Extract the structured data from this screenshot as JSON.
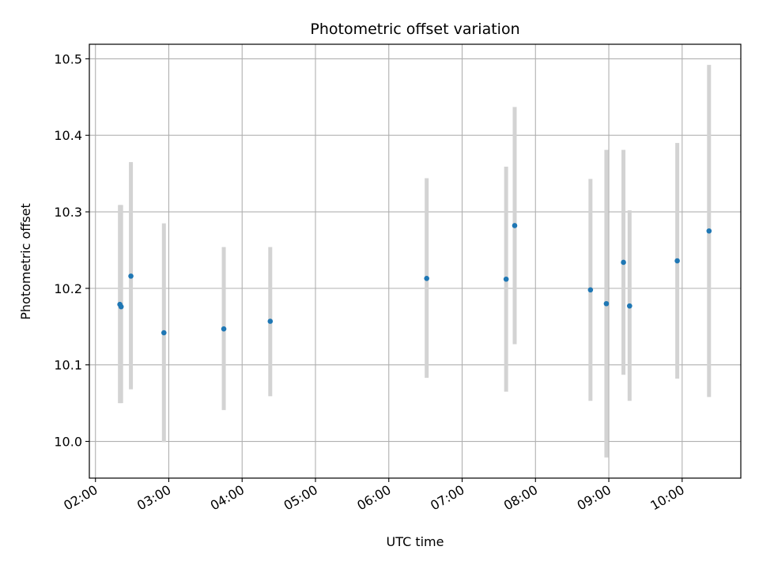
{
  "chart_data": {
    "type": "scatter",
    "title": "Photometric offset variation",
    "xlabel": "UTC time",
    "ylabel": "Photometric offset",
    "x_ticks": [
      "02:00",
      "03:00",
      "04:00",
      "05:00",
      "06:00",
      "07:00",
      "08:00",
      "09:00",
      "10:00"
    ],
    "y_ticks": [
      10.0,
      10.1,
      10.2,
      10.3,
      10.4,
      10.5
    ],
    "y_tick_labels": [
      "10.0",
      "10.1",
      "10.2",
      "10.3",
      "10.4",
      "10.5"
    ],
    "xlim": [
      "01:55",
      "10:48"
    ],
    "ylim": [
      9.952,
      10.519
    ],
    "grid": true,
    "colors": {
      "point": "#1f77b4",
      "errorbar": "#d3d3d3",
      "grid": "#b0b0b0"
    },
    "points": [
      {
        "x": "02:20",
        "y": 10.179,
        "err_low": 10.05,
        "err_high": 10.309
      },
      {
        "x": "02:21",
        "y": 10.176,
        "err_low": 10.05,
        "err_high": 10.309
      },
      {
        "x": "02:29",
        "y": 10.216,
        "err_low": 10.068,
        "err_high": 10.365
      },
      {
        "x": "02:56",
        "y": 10.142,
        "err_low": 9.999,
        "err_high": 10.285
      },
      {
        "x": "03:45",
        "y": 10.147,
        "err_low": 10.041,
        "err_high": 10.254
      },
      {
        "x": "04:23",
        "y": 10.157,
        "err_low": 10.059,
        "err_high": 10.254
      },
      {
        "x": "06:31",
        "y": 10.213,
        "err_low": 10.083,
        "err_high": 10.344
      },
      {
        "x": "07:36",
        "y": 10.212,
        "err_low": 10.065,
        "err_high": 10.359
      },
      {
        "x": "07:43",
        "y": 10.282,
        "err_low": 10.127,
        "err_high": 10.437
      },
      {
        "x": "08:45",
        "y": 10.198,
        "err_low": 10.053,
        "err_high": 10.343
      },
      {
        "x": "08:58",
        "y": 10.18,
        "err_low": 9.979,
        "err_high": 10.381
      },
      {
        "x": "09:12",
        "y": 10.234,
        "err_low": 10.087,
        "err_high": 10.381
      },
      {
        "x": "09:17",
        "y": 10.177,
        "err_low": 10.053,
        "err_high": 10.302
      },
      {
        "x": "09:56",
        "y": 10.236,
        "err_low": 10.082,
        "err_high": 10.39
      },
      {
        "x": "10:22",
        "y": 10.275,
        "err_low": 10.058,
        "err_high": 10.492
      }
    ]
  }
}
